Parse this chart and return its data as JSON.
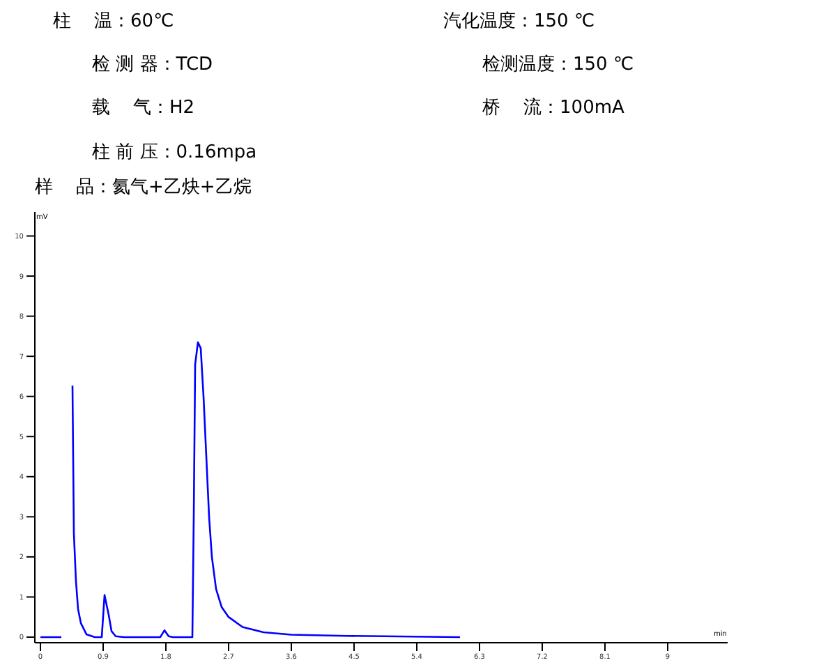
{
  "chart_data": {
    "type": "line",
    "xlabel": "min",
    "ylabel": "mV",
    "annotations": [
      "柱    温：60℃",
      "汽化温度：150 ℃",
      "检 测 器：TCD",
      "检测温度：150 ℃",
      "载    气：H2",
      "桥    流：100mA",
      "柱 前 压：0.16mpa",
      "样    品：氦气+乙炔+乙烷"
    ],
    "x": [
      0,
      0.3,
      0.32,
      0.33,
      0.44,
      0.46,
      0.48,
      0.51,
      0.54,
      0.58,
      0.66,
      0.78,
      0.88,
      0.92,
      0.95,
      0.98,
      1.02,
      1.08,
      1.2,
      1.72,
      1.78,
      1.84,
      1.9,
      2.18,
      2.2,
      2.22,
      2.26,
      2.3,
      2.34,
      2.38,
      2.42,
      2.46,
      2.52,
      2.6,
      2.7,
      2.9,
      3.2,
      3.6,
      4.4,
      6.02
    ],
    "series": [
      {
        "color": "#0000ff",
        "values": [
          0,
          0,
          null,
          null,
          null,
          6.27,
          2.58,
          1.39,
          0.7,
          0.35,
          0.07,
          0,
          0,
          1.05,
          0.8,
          0.55,
          0.15,
          0.02,
          0,
          0,
          0.17,
          0.02,
          0,
          0,
          3,
          6.8,
          7.35,
          7.2,
          6,
          4.5,
          3,
          2,
          1.2,
          0.75,
          0.5,
          0.25,
          0.12,
          0.06,
          0.03,
          0
        ]
      }
    ],
    "xlim": [
      -0.08,
      9.86
    ],
    "xticks": [
      0,
      0.9,
      1.8,
      2.7,
      3.6,
      4.5,
      5.4,
      6.3,
      7.2,
      8.1,
      9
    ],
    "ylim": [
      -0.14,
      10.6
    ],
    "yticks": [
      0,
      1,
      2,
      3,
      4,
      5,
      6,
      7,
      8,
      9,
      10
    ],
    "grid": false,
    "legend": false,
    "marker": "none",
    "line_style": "solid"
  }
}
